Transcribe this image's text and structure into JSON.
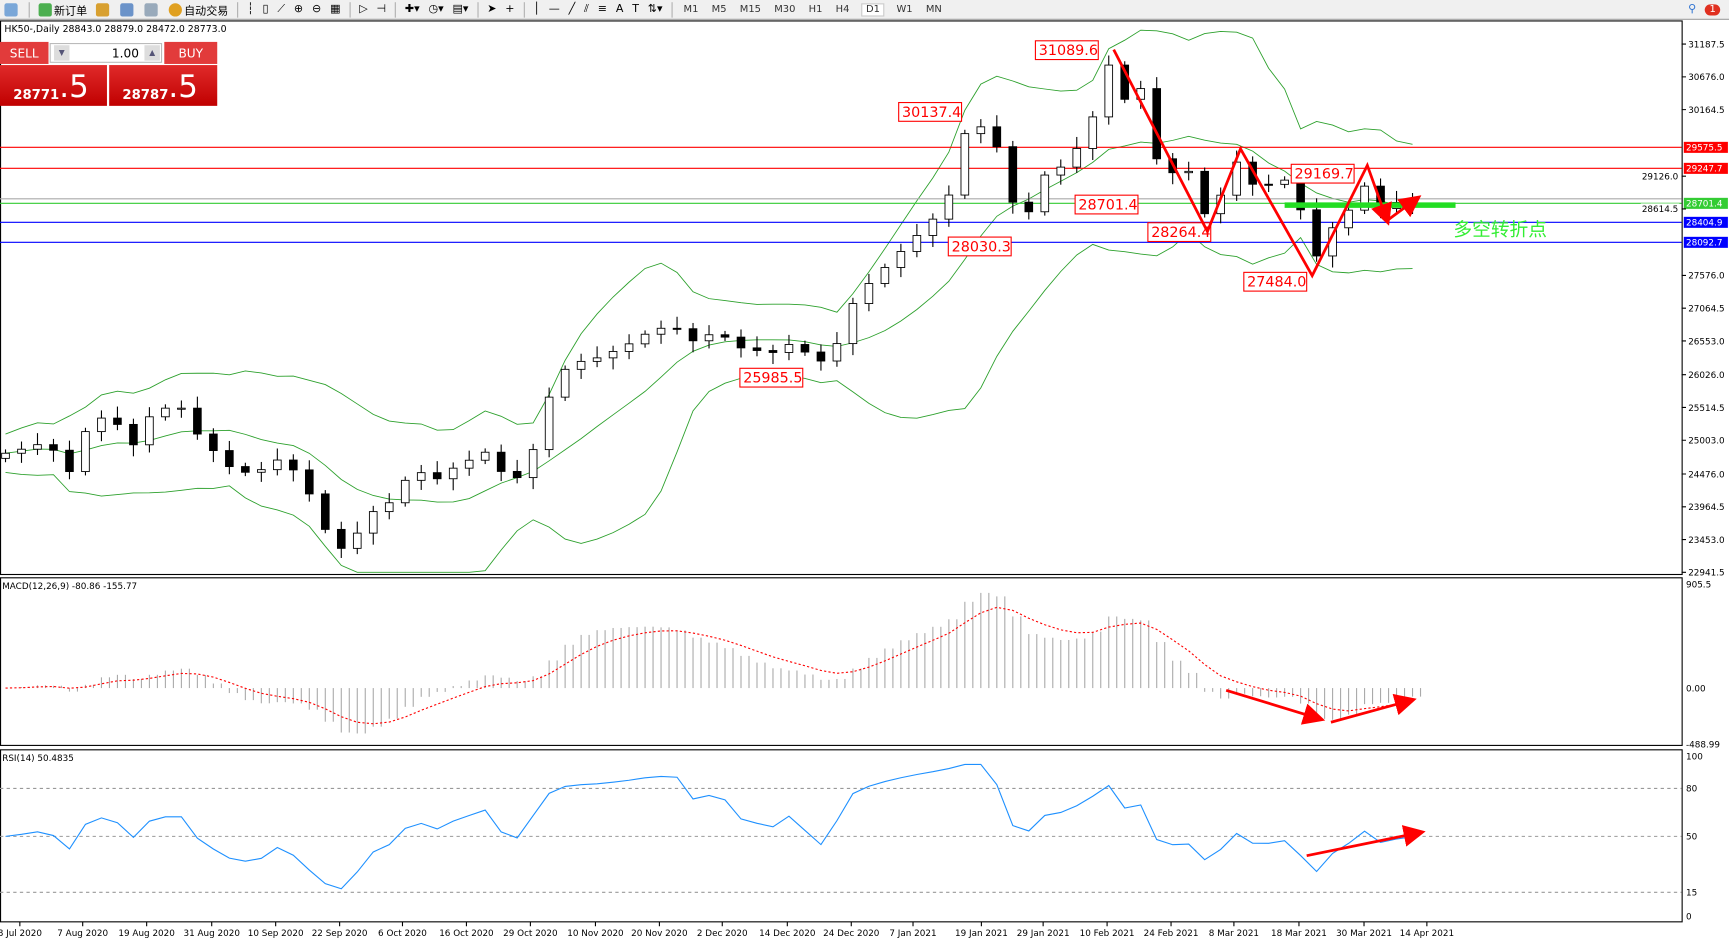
{
  "toolbar": {
    "new_order": "新订单",
    "auto_trading": "自动交易",
    "timeframes": [
      "M1",
      "M5",
      "M15",
      "M30",
      "H1",
      "H4",
      "D1",
      "W1",
      "MN"
    ],
    "active_timeframe": "D1",
    "notification_count": "1"
  },
  "chart_header": "HK50-,Daily  28843.0 28879.0 28472.0 28773.0",
  "trade_panel": {
    "sell_label": "SELL",
    "buy_label": "BUY",
    "lot": "1.00",
    "sell_price_main": "28771",
    "sell_price_frac": ".5",
    "buy_price_main": "28787",
    "buy_price_frac": ".5"
  },
  "chart_data": {
    "type": "candlestick",
    "symbol": "HK50-",
    "timeframe": "Daily",
    "ylim": [
      22941.5,
      31187.5
    ],
    "y_ticks": [
      "31187.5",
      "30676.0",
      "30164.5",
      "29126.0",
      "28614.5",
      "27576.0",
      "27064.5",
      "26553.0",
      "26026.0",
      "25514.5",
      "25003.0",
      "24476.0",
      "23964.5",
      "23453.0",
      "22941.5"
    ],
    "x_ticks": [
      "8 Jul 2020",
      "7 Aug 2020",
      "19 Aug 2020",
      "31 Aug 2020",
      "10 Sep 2020",
      "22 Sep 2020",
      "6 Oct 2020",
      "16 Oct 2020",
      "29 Oct 2020",
      "10 Nov 2020",
      "20 Nov 2020",
      "2 Dec 2020",
      "14 Dec 2020",
      "24 Dec 2020",
      "7 Jan 2021",
      "19 Jan 2021",
      "29 Jan 2021",
      "10 Feb 2021",
      "24 Feb 2021",
      "8 Mar 2021",
      "18 Mar 2021",
      "30 Mar 2021",
      "14 Apr 2021"
    ],
    "closes": [
      24800,
      24863,
      24934,
      24847,
      24514,
      25138,
      25349,
      25250,
      24932,
      25369,
      25504,
      25504,
      25100,
      24842,
      24592,
      24503,
      24544,
      24694,
      24540,
      24165,
      23611,
      23315,
      23553,
      23889,
      24027,
      24377,
      24497,
      24402,
      24567,
      24691,
      24816,
      24516,
      24420,
      24857,
      25676,
      26110,
      26234,
      26289,
      26389,
      26508,
      26658,
      26751,
      26744,
      26556,
      26650,
      26613,
      26445,
      26404,
      26373,
      26498,
      26380,
      26240,
      26512,
      27137,
      27450,
      27700,
      27950,
      28200,
      28455,
      28831,
      29790,
      29896,
      29586,
      28720,
      28570,
      29143,
      29267,
      29558,
      30051,
      30860,
      30326,
      30493,
      29397,
      29180,
      29201,
      28540,
      28829,
      29345,
      29000,
      28998,
      29064,
      28600,
      27880,
      28320,
      28595,
      28970,
      28620,
      28715,
      28773
    ],
    "bollinger_bands": true,
    "horizontal_lines": [
      {
        "price": "29575.5",
        "color": "#ff0000"
      },
      {
        "price": "29247.7",
        "color": "#ff0000"
      },
      {
        "price": "28701.4",
        "color": "#33cc33"
      },
      {
        "price": "28404.9",
        "color": "#0000ff"
      },
      {
        "price": "28092.7",
        "color": "#0000ff"
      }
    ],
    "price_annotations": [
      "31089.6",
      "30137.4",
      "29169.7",
      "28701.4",
      "28264.4",
      "28030.3",
      "27484.0",
      "25985.5"
    ],
    "text_annotation": "多空转折点",
    "text_annotation_color": "#33ee33",
    "arrow_color": "#ff0000",
    "macd": {
      "label": "MACD(12,26,9) -80.86 -155.77",
      "ticks": [
        "905.5",
        "0.00",
        "-488.99"
      ],
      "ylim": [
        -488.99,
        905.5
      ]
    },
    "rsi": {
      "label": "RSI(14) 50.4835",
      "ticks": [
        "100",
        "80",
        "50",
        "15",
        "0"
      ],
      "levels": [
        80,
        50,
        15
      ]
    }
  }
}
